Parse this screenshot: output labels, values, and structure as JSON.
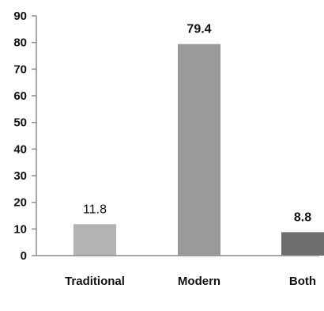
{
  "chart_data": {
    "type": "bar",
    "title": "",
    "xlabel": "",
    "ylabel": "",
    "categories": [
      "Traditional",
      "Modern",
      "Both"
    ],
    "values": [
      11.8,
      79.4,
      8.8
    ],
    "data_labels": [
      "11.8",
      "79.4",
      "8.8"
    ],
    "data_label_bold": [
      false,
      true,
      true
    ],
    "bar_colors": [
      "#b3b3b3",
      "#9a9a9a",
      "#6e6e6e"
    ],
    "ylim": [
      0,
      90
    ],
    "yticks": [
      0,
      10,
      20,
      30,
      40,
      50,
      60,
      70,
      80,
      90
    ],
    "grid": false,
    "legend": "none",
    "axis_color": "#8c8c8c"
  }
}
